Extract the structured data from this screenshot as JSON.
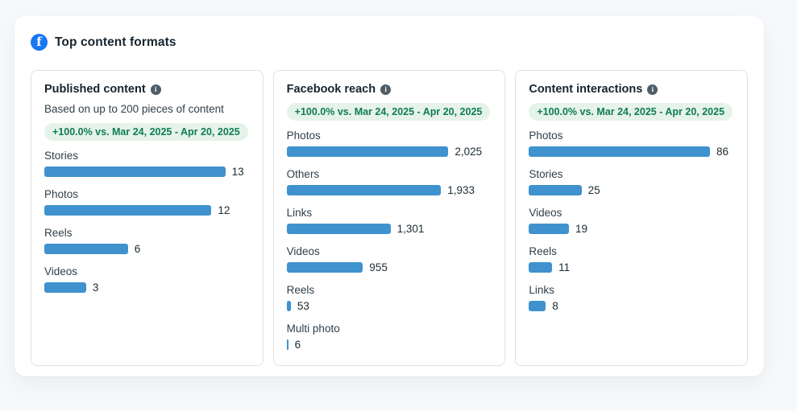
{
  "header": {
    "title": "Top content formats"
  },
  "colors": {
    "bar": "#3f92ce",
    "badge_bg": "#e6f3eb",
    "badge_text": "#0f7c53",
    "facebook_blue": "#1877f2"
  },
  "panels": [
    {
      "title": "Published content",
      "subtitle": "Based on up to 200 pieces of content",
      "badge": "+100.0% vs. Mar 24, 2025 - Apr 20, 2025"
    },
    {
      "title": "Facebook reach",
      "subtitle": "",
      "badge": "+100.0% vs. Mar 24, 2025 - Apr 20, 2025"
    },
    {
      "title": "Content interactions",
      "subtitle": "",
      "badge": "+100.0% vs. Mar 24, 2025 - Apr 20, 2025"
    }
  ],
  "chart_data": [
    {
      "type": "bar",
      "orientation": "horizontal",
      "title": "Published content",
      "categories": [
        "Stories",
        "Photos",
        "Reels",
        "Videos"
      ],
      "values": [
        13,
        12,
        6,
        3
      ],
      "value_labels": [
        "13",
        "12",
        "6",
        "3"
      ],
      "xlim": [
        0,
        13
      ],
      "grid": false,
      "legend": false
    },
    {
      "type": "bar",
      "orientation": "horizontal",
      "title": "Facebook reach",
      "categories": [
        "Photos",
        "Others",
        "Links",
        "Videos",
        "Reels",
        "Multi photo"
      ],
      "values": [
        2025,
        1933,
        1301,
        955,
        53,
        6
      ],
      "value_labels": [
        "2,025",
        "1,933",
        "1,301",
        "955",
        "53",
        "6"
      ],
      "xlim": [
        0,
        2025
      ],
      "grid": false,
      "legend": false
    },
    {
      "type": "bar",
      "orientation": "horizontal",
      "title": "Content interactions",
      "categories": [
        "Photos",
        "Stories",
        "Videos",
        "Reels",
        "Links"
      ],
      "values": [
        86,
        25,
        19,
        11,
        8
      ],
      "value_labels": [
        "86",
        "25",
        "19",
        "11",
        "8"
      ],
      "xlim": [
        0,
        86
      ],
      "grid": false,
      "legend": false
    }
  ]
}
